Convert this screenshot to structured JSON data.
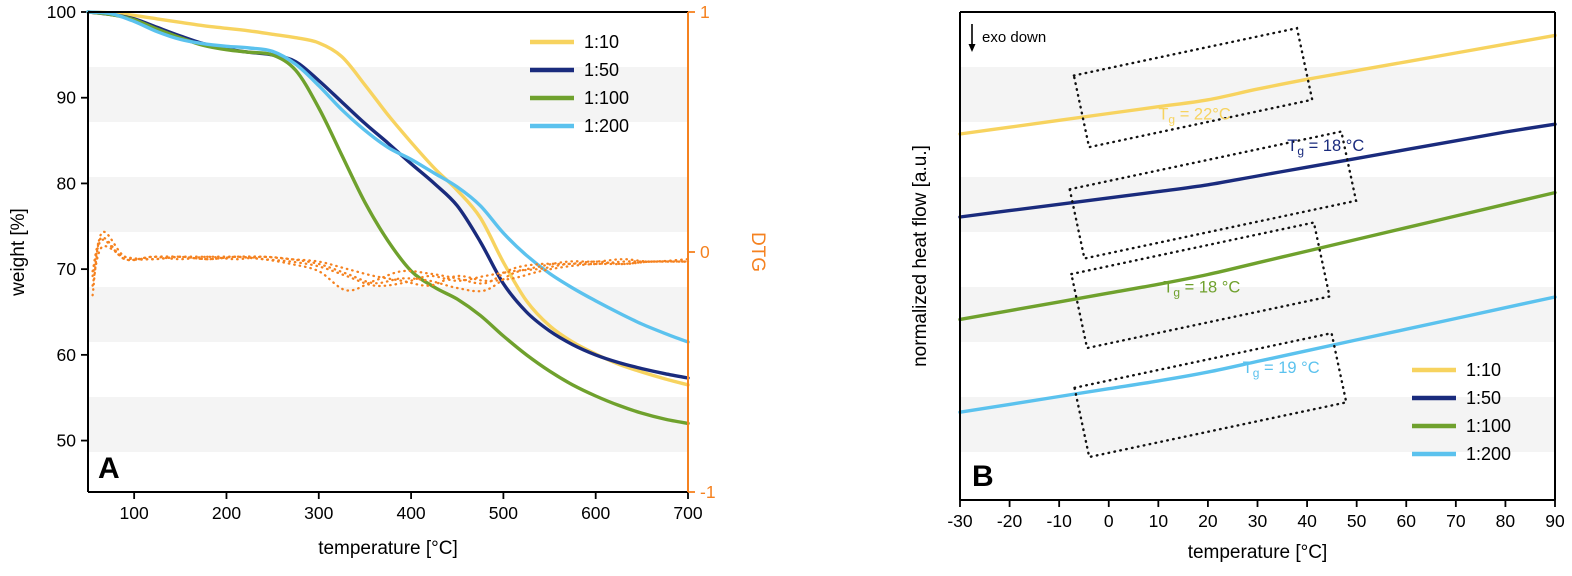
{
  "colors": {
    "background": "#ffffff",
    "axis": "#000000",
    "stripe": "#f4f4f4",
    "dtg_axis": "#F58220",
    "series_1_10": "#F7D35F",
    "series_1_50": "#1A2B7D",
    "series_1_100": "#6FA12D",
    "series_1_200": "#5BC2EE"
  },
  "chart_data": [
    {
      "id": "panel-a",
      "type": "line",
      "panel_label": "A",
      "title": "",
      "xlabel": "temperature [°C]",
      "ylabel": "weight [%]",
      "y2label": "DTG",
      "xlim": [
        50,
        700
      ],
      "ylim": [
        44,
        100
      ],
      "y2lim": [
        -1,
        1
      ],
      "xticks": [
        100,
        200,
        300,
        400,
        500,
        600,
        700
      ],
      "yticks": [
        50,
        60,
        70,
        80,
        90,
        100
      ],
      "y2ticks": [
        1,
        0,
        -1
      ],
      "grid": false,
      "legend": [
        "1:10",
        "1:50",
        "1:100",
        "1:200"
      ],
      "legend_position": "top-right",
      "x_weight": [
        50,
        75,
        100,
        125,
        150,
        175,
        200,
        225,
        250,
        275,
        300,
        325,
        350,
        375,
        400,
        425,
        450,
        475,
        500,
        525,
        550,
        575,
        600,
        625,
        650,
        675,
        700
      ],
      "x_dtg": [
        55,
        65,
        90,
        120,
        150,
        180,
        210,
        240,
        270,
        300,
        330,
        360,
        390,
        420,
        450,
        480,
        510,
        540,
        570,
        600,
        630,
        660,
        700
      ],
      "series": [
        {
          "name": "1:10",
          "axis": "y1",
          "style": "solid",
          "color": "#F7D35F",
          "x_ref": "x_weight",
          "y": [
            100,
            99.9,
            99.6,
            99.2,
            98.8,
            98.4,
            98.1,
            97.8,
            97.4,
            97.0,
            96.4,
            94.8,
            91.5,
            88.0,
            84.8,
            81.8,
            79.2,
            76.0,
            70.8,
            66.3,
            63.4,
            61.5,
            60.1,
            58.9,
            58.0,
            57.2,
            56.5
          ]
        },
        {
          "name": "1:50",
          "axis": "y1",
          "style": "solid",
          "color": "#1A2B7D",
          "x_ref": "x_weight",
          "y": [
            100,
            99.7,
            99.2,
            98.2,
            97.2,
            96.3,
            95.7,
            95.3,
            95.0,
            94.2,
            92.0,
            89.5,
            87.0,
            84.7,
            82.3,
            80.0,
            77.4,
            73.2,
            68.3,
            65.0,
            62.8,
            61.2,
            60.0,
            59.1,
            58.4,
            57.8,
            57.3
          ]
        },
        {
          "name": "1:100",
          "axis": "y1",
          "style": "solid",
          "color": "#6FA12D",
          "x_ref": "x_weight",
          "y": [
            100,
            99.7,
            99.1,
            98.0,
            97.0,
            96.1,
            95.6,
            95.3,
            95.0,
            93.2,
            88.8,
            83.3,
            77.8,
            73.3,
            69.8,
            67.9,
            66.5,
            64.6,
            62.2,
            60.0,
            58.1,
            56.5,
            55.2,
            54.1,
            53.2,
            52.5,
            52.0
          ]
        },
        {
          "name": "1:200",
          "axis": "y1",
          "style": "solid",
          "color": "#5BC2EE",
          "x_ref": "x_weight",
          "y": [
            100,
            99.8,
            98.9,
            97.7,
            96.8,
            96.3,
            96.0,
            95.8,
            95.4,
            93.9,
            91.4,
            88.6,
            86.2,
            84.2,
            82.8,
            81.2,
            79.6,
            77.4,
            74.2,
            71.6,
            69.5,
            67.8,
            66.3,
            64.9,
            63.6,
            62.5,
            61.5
          ]
        },
        {
          "name": "DTG 1:10",
          "axis": "y2",
          "style": "dotted",
          "color": "#F58220",
          "x_ref": "x_dtg",
          "y": [
            -0.18,
            0.08,
            -0.02,
            -0.03,
            -0.02,
            -0.03,
            -0.02,
            -0.03,
            -0.05,
            -0.08,
            -0.16,
            -0.12,
            -0.08,
            -0.09,
            -0.11,
            -0.13,
            -0.07,
            -0.05,
            -0.05,
            -0.04,
            -0.05,
            -0.04,
            -0.04
          ]
        },
        {
          "name": "DTG 1:50",
          "axis": "y2",
          "style": "dotted",
          "color": "#F58220",
          "x_ref": "x_dtg",
          "y": [
            -0.1,
            0.05,
            -0.03,
            -0.02,
            -0.03,
            -0.02,
            -0.03,
            -0.02,
            -0.03,
            -0.05,
            -0.09,
            -0.13,
            -0.11,
            -0.12,
            -0.15,
            -0.16,
            -0.09,
            -0.06,
            -0.04,
            -0.04,
            -0.03,
            -0.04,
            -0.03
          ]
        },
        {
          "name": "DTG 1:100",
          "axis": "y2",
          "style": "dotted",
          "color": "#F58220",
          "x_ref": "x_dtg",
          "y": [
            -0.14,
            0.02,
            -0.02,
            -0.03,
            -0.02,
            -0.02,
            -0.02,
            -0.03,
            -0.04,
            -0.06,
            -0.1,
            -0.14,
            -0.13,
            -0.1,
            -0.12,
            -0.1,
            -0.08,
            -0.07,
            -0.05,
            -0.05,
            -0.04,
            -0.04,
            -0.04
          ]
        },
        {
          "name": "DTG 1:200",
          "axis": "y2",
          "style": "dotted",
          "color": "#F58220",
          "x_ref": "x_dtg",
          "y": [
            -0.08,
            0.06,
            -0.03,
            -0.02,
            -0.02,
            -0.03,
            -0.02,
            -0.02,
            -0.03,
            -0.04,
            -0.07,
            -0.1,
            -0.12,
            -0.14,
            -0.1,
            -0.12,
            -0.11,
            -0.08,
            -0.06,
            -0.05,
            -0.05,
            -0.04,
            -0.04
          ]
        }
      ]
    },
    {
      "id": "panel-b",
      "type": "line",
      "panel_label": "B",
      "title": "",
      "xlabel": "temperature [°C]",
      "ylabel": "normalized heat flow [a.u.]",
      "xlim": [
        -30,
        90
      ],
      "ylim": [
        0,
        10
      ],
      "xticks": [
        -30,
        -20,
        -10,
        0,
        10,
        20,
        30,
        40,
        50,
        60,
        70,
        80,
        90
      ],
      "yticks": [],
      "grid": false,
      "legend": [
        "1:10",
        "1:50",
        "1:100",
        "1:200"
      ],
      "legend_position": "bottom-right",
      "x_b": [
        -30,
        -20,
        -10,
        0,
        10,
        20,
        30,
        40,
        50,
        60,
        70,
        80,
        90
      ],
      "series": [
        {
          "name": "1:10",
          "axis": "y1",
          "style": "solid",
          "color": "#F7D35F",
          "x_ref": "x_b",
          "y": [
            7.5,
            7.64,
            7.78,
            7.92,
            8.06,
            8.2,
            8.42,
            8.62,
            8.8,
            8.98,
            9.16,
            9.34,
            9.52
          ]
        },
        {
          "name": "1:50",
          "axis": "y1",
          "style": "solid",
          "color": "#1A2B7D",
          "x_ref": "x_b",
          "y": [
            5.8,
            5.93,
            6.06,
            6.19,
            6.32,
            6.46,
            6.64,
            6.82,
            7.0,
            7.18,
            7.36,
            7.54,
            7.7
          ]
        },
        {
          "name": "1:100",
          "axis": "y1",
          "style": "solid",
          "color": "#6FA12D",
          "x_ref": "x_b",
          "y": [
            3.7,
            3.88,
            4.06,
            4.24,
            4.42,
            4.62,
            4.86,
            5.1,
            5.34,
            5.58,
            5.82,
            6.06,
            6.3
          ]
        },
        {
          "name": "1:200",
          "axis": "y1",
          "style": "solid",
          "color": "#5BC2EE",
          "x_ref": "x_b",
          "y": [
            1.8,
            1.96,
            2.12,
            2.28,
            2.44,
            2.62,
            2.84,
            3.06,
            3.28,
            3.5,
            3.72,
            3.94,
            4.16
          ]
        }
      ],
      "annotations": {
        "exo_down": "exo down",
        "tg_labels": [
          {
            "main": "T",
            "sub": "g",
            "rest": " = 22°C",
            "color": "#F7D35F",
            "x": 10,
            "y": 7.8
          },
          {
            "main": "T",
            "sub": "g",
            "rest": " = 18 °C",
            "color": "#1A2B7D",
            "x": 36,
            "y": 7.15
          },
          {
            "main": "T",
            "sub": "g",
            "rest": " = 18 °C",
            "color": "#6FA12D",
            "x": 11,
            "y": 4.25
          },
          {
            "main": "T",
            "sub": "g",
            "rest": " = 19 °C",
            "color": "#5BC2EE",
            "x": 27,
            "y": 2.6
          }
        ],
        "boxes": [
          {
            "cx": 17.0,
            "cy": 8.45,
            "w": 46,
            "h": 1.5,
            "angle": -12
          },
          {
            "cx": 21.0,
            "cy": 6.25,
            "w": 56,
            "h": 1.45,
            "angle": -12
          },
          {
            "cx": 18.5,
            "cy": 4.4,
            "w": 50,
            "h": 1.55,
            "angle": -12
          },
          {
            "cx": 20.5,
            "cy": 2.15,
            "w": 53,
            "h": 1.45,
            "angle": -12
          }
        ]
      }
    }
  ]
}
